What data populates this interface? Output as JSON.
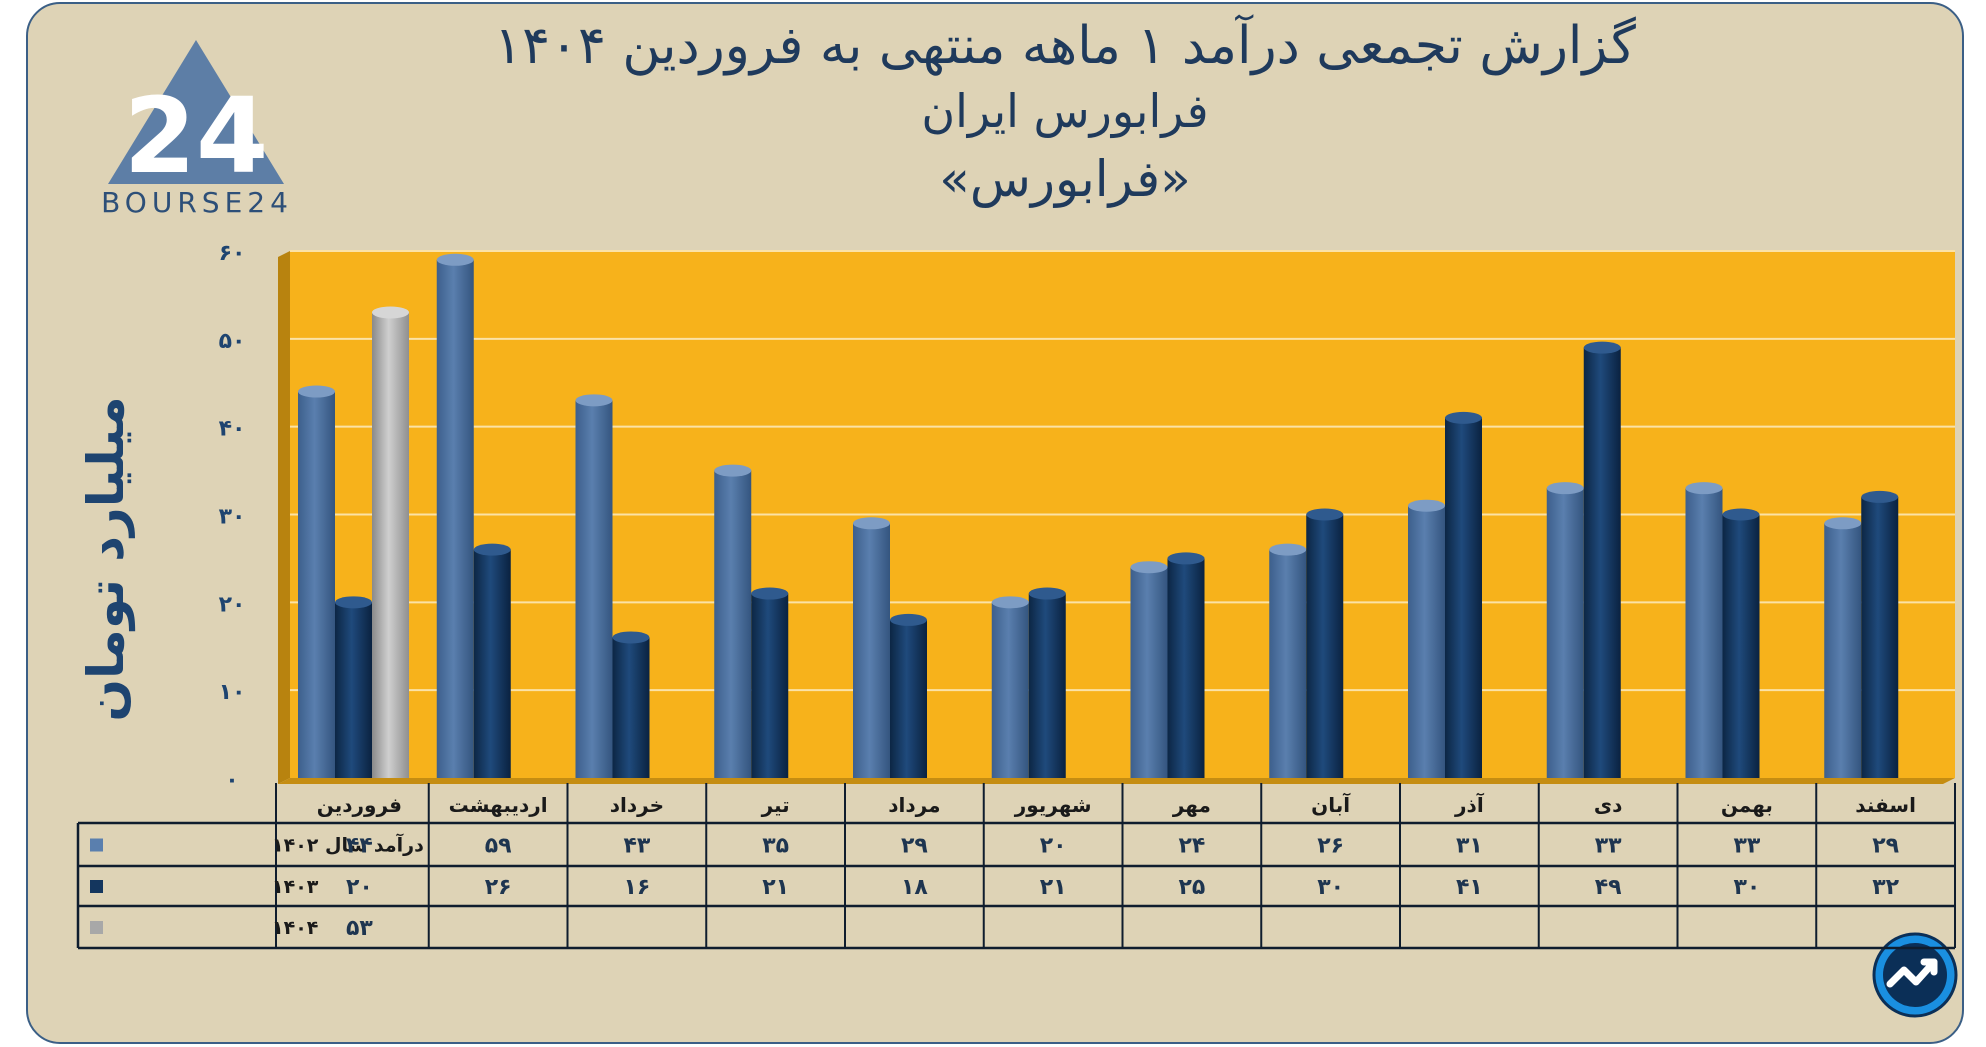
{
  "title_lines": [
    "گزارش تجمعی درآمد ۱ ماهه منتهی به فروردین ۱۴۰۴",
    "فرابورس ایران",
    "«فرابورس»"
  ],
  "logo": {
    "text": "BOURSE24",
    "mark": "24"
  },
  "colors": {
    "background": "#ded3b6",
    "plot_area": "#f7b21b",
    "series_1402": "#5a7fae",
    "series_1403": "#14365e",
    "series_1404": "#a8a8a8",
    "text": "#1f3a5c"
  },
  "chart_data": {
    "type": "bar",
    "title": "گزارش تجمعی درآمد ۱ ماهه منتهی به فروردین ۱۴۰۴",
    "ylabel": "میلیارد تومان",
    "xlabel": "",
    "ylim": [
      0,
      60
    ],
    "yticks": [
      0,
      10,
      20,
      30,
      40,
      50,
      60
    ],
    "ytick_labels": [
      "۰",
      "۱۰",
      "۲۰",
      "۳۰",
      "۴۰",
      "۵۰",
      "۶۰"
    ],
    "grid": true,
    "categories": [
      "فروردین",
      "اردیبهشت",
      "خرداد",
      "تیر",
      "مرداد",
      "شهریور",
      "مهر",
      "آبان",
      "آذر",
      "دی",
      "بهمن",
      "اسفند"
    ],
    "series": [
      {
        "name": "۱۴۰۲",
        "legend_label": "درآمد  سال ۱۴۰۲",
        "values": [
          44,
          59,
          43,
          35,
          29,
          20,
          24,
          26,
          31,
          33,
          33,
          29
        ],
        "labels": [
          "۴۴",
          "۵۹",
          "۴۳",
          "۳۵",
          "۲۹",
          "۲۰",
          "۲۴",
          "۲۶",
          "۳۱",
          "۳۳",
          "۳۳",
          "۲۹"
        ]
      },
      {
        "name": "۱۴۰۳",
        "legend_label": "۱۴۰۳",
        "values": [
          20,
          26,
          16,
          21,
          18,
          21,
          25,
          30,
          41,
          49,
          30,
          32
        ],
        "labels": [
          "۲۰",
          "۲۶",
          "۱۶",
          "۲۱",
          "۱۸",
          "۲۱",
          "۲۵",
          "۳۰",
          "۴۱",
          "۴۹",
          "۳۰",
          "۳۲"
        ]
      },
      {
        "name": "۱۴۰۴",
        "legend_label": "۱۴۰۴",
        "values": [
          53,
          null,
          null,
          null,
          null,
          null,
          null,
          null,
          null,
          null,
          null,
          null
        ],
        "labels": [
          "۵۳",
          "",
          "",
          "",
          "",
          "",
          "",
          "",
          "",
          "",
          "",
          ""
        ]
      }
    ]
  }
}
